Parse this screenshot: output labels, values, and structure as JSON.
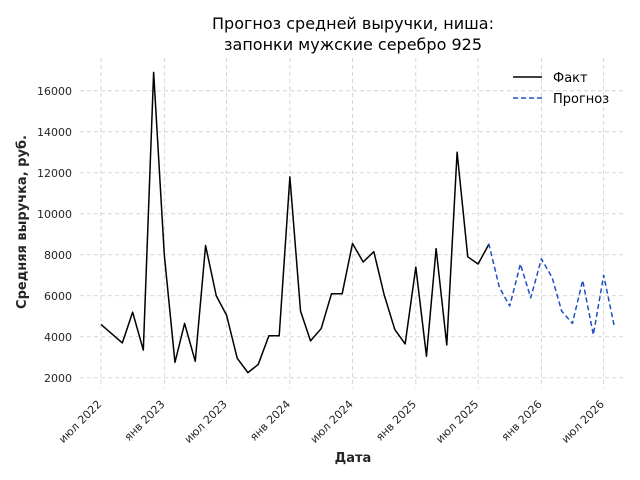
{
  "chart_data": {
    "type": "line",
    "title": [
      "Прогноз средней выручки, ниша:",
      "запонки мужские серебро 925"
    ],
    "xlabel": "Дата",
    "ylabel": "Средняя выручка, руб.",
    "ylim": [
      1500,
      17600
    ],
    "xlim": [
      "2022-05-01",
      "2026-09-01"
    ],
    "yticks": [
      2000,
      4000,
      6000,
      8000,
      10000,
      12000,
      14000,
      16000
    ],
    "xticks": [
      {
        "date": "2022-07-01",
        "label": "июл 2022"
      },
      {
        "date": "2023-01-01",
        "label": "янв 2023"
      },
      {
        "date": "2023-07-01",
        "label": "июл 2023"
      },
      {
        "date": "2024-01-01",
        "label": "янв 2024"
      },
      {
        "date": "2024-07-01",
        "label": "июл 2024"
      },
      {
        "date": "2025-01-01",
        "label": "янв 2025"
      },
      {
        "date": "2025-07-01",
        "label": "июл 2025"
      },
      {
        "date": "2026-01-01",
        "label": "янв 2026"
      },
      {
        "date": "2026-07-01",
        "label": "июл 2026"
      }
    ],
    "grid": true,
    "legend_position": "top-right",
    "series": [
      {
        "name": "Факт",
        "color": "#000000",
        "style": "solid",
        "points": [
          [
            "2022-07-01",
            4600
          ],
          [
            "2022-08-01",
            4150
          ],
          [
            "2022-09-01",
            3700
          ],
          [
            "2022-10-01",
            5200
          ],
          [
            "2022-11-01",
            3350
          ],
          [
            "2022-12-01",
            16900
          ],
          [
            "2023-01-01",
            8000
          ],
          [
            "2023-02-01",
            2750
          ],
          [
            "2023-03-01",
            4650
          ],
          [
            "2023-04-01",
            2800
          ],
          [
            "2023-05-01",
            8450
          ],
          [
            "2023-06-01",
            6000
          ],
          [
            "2023-07-01",
            5050
          ],
          [
            "2023-08-01",
            2950
          ],
          [
            "2023-09-01",
            2250
          ],
          [
            "2023-10-01",
            2650
          ],
          [
            "2023-11-01",
            4050
          ],
          [
            "2023-12-01",
            4050
          ],
          [
            "2024-01-01",
            11800
          ],
          [
            "2024-02-01",
            5250
          ],
          [
            "2024-03-01",
            3800
          ],
          [
            "2024-04-01",
            4400
          ],
          [
            "2024-05-01",
            6100
          ],
          [
            "2024-06-01",
            6100
          ],
          [
            "2024-07-01",
            8550
          ],
          [
            "2024-08-01",
            7650
          ],
          [
            "2024-09-01",
            8150
          ],
          [
            "2024-10-01",
            6050
          ],
          [
            "2024-11-01",
            4350
          ],
          [
            "2024-12-01",
            3650
          ],
          [
            "2025-01-01",
            7400
          ],
          [
            "2025-02-01",
            3050
          ],
          [
            "2025-03-01",
            8300
          ],
          [
            "2025-04-01",
            3600
          ],
          [
            "2025-05-01",
            13000
          ],
          [
            "2025-06-01",
            7900
          ],
          [
            "2025-07-01",
            7550
          ],
          [
            "2025-08-01",
            8500
          ]
        ]
      },
      {
        "name": "Прогноз",
        "color": "#1f4fc7",
        "style": "dashed",
        "points": [
          [
            "2025-08-01",
            8550
          ],
          [
            "2025-09-01",
            6400
          ],
          [
            "2025-10-01",
            5500
          ],
          [
            "2025-11-01",
            7550
          ],
          [
            "2025-12-01",
            5900
          ],
          [
            "2026-01-01",
            7800
          ],
          [
            "2026-02-01",
            6900
          ],
          [
            "2026-03-01",
            5250
          ],
          [
            "2026-04-01",
            4650
          ],
          [
            "2026-05-01",
            6750
          ],
          [
            "2026-06-01",
            4100
          ],
          [
            "2026-07-01",
            7000
          ],
          [
            "2026-08-01",
            4500
          ]
        ]
      }
    ]
  }
}
